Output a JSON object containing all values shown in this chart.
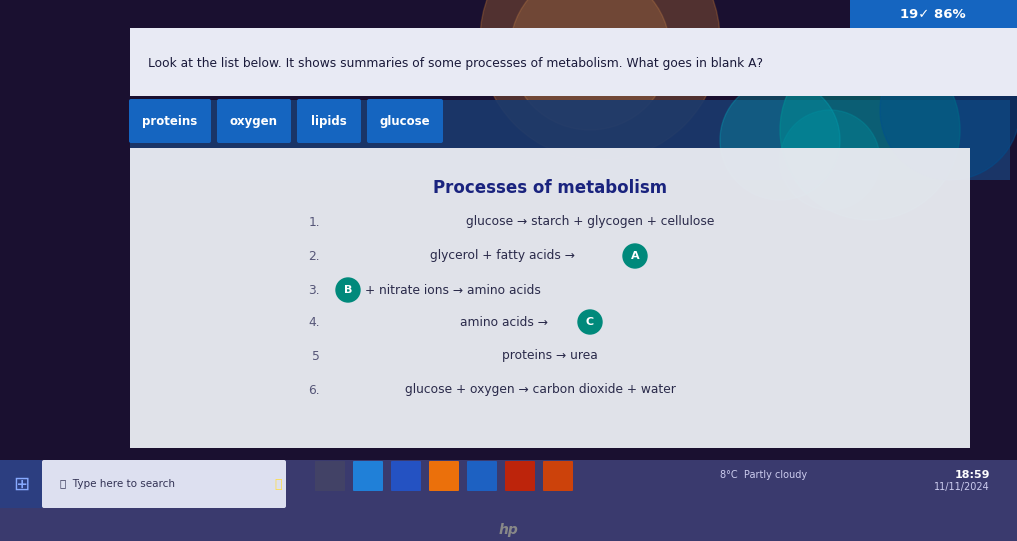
{
  "bg_outer": "#1a0a0a",
  "bg_dark": "#1a1028",
  "question_text": "Look at the list below. It shows summaries of some processes of metabolism. What goes in blank A?",
  "answer_buttons": [
    "proteins",
    "oxygen",
    "lipids",
    "glucose"
  ],
  "answer_button_color": "#1565c0",
  "title": "Processes of metabolism",
  "title_color": "#1a237e",
  "content_bg": "#e8eaf0",
  "process_text_color": "#2a2a4a",
  "circle_color": "#00897b",
  "circle_text_color": "#ffffff",
  "badge_text": "19✓ 86%",
  "badge_color": "#1565c0",
  "time_text": "18:59",
  "date_text": "11/11/2024",
  "weather_text": "8°C  Partly cloudy",
  "taskbar_color": "#3a3a6e",
  "taskbar_search_bg": "#e8eaf6",
  "arrow": "→",
  "processes": [
    {
      "num": "1.",
      "left": "glucose → starch + glycogen + cellulose",
      "circle": null,
      "right": null,
      "num_align": "right"
    },
    {
      "num": "2.",
      "left": "glycerol + fatty acids →",
      "circle": "A",
      "right": null,
      "num_align": "left"
    },
    {
      "num": "3.",
      "left": null,
      "circle": "B",
      "right": "+ nitrate ions → amino acids",
      "num_align": "mid"
    },
    {
      "num": "4.",
      "left": "amino acids →",
      "circle": "C",
      "right": null,
      "num_align": "mid"
    },
    {
      "num": "5.",
      "left": "proteins → urea",
      "circle": null,
      "right": null,
      "num_align": "right"
    },
    {
      "num": "6.",
      "left": "glucose + oxygen → carbon dioxide + water",
      "circle": null,
      "right": null,
      "num_align": "right"
    }
  ]
}
